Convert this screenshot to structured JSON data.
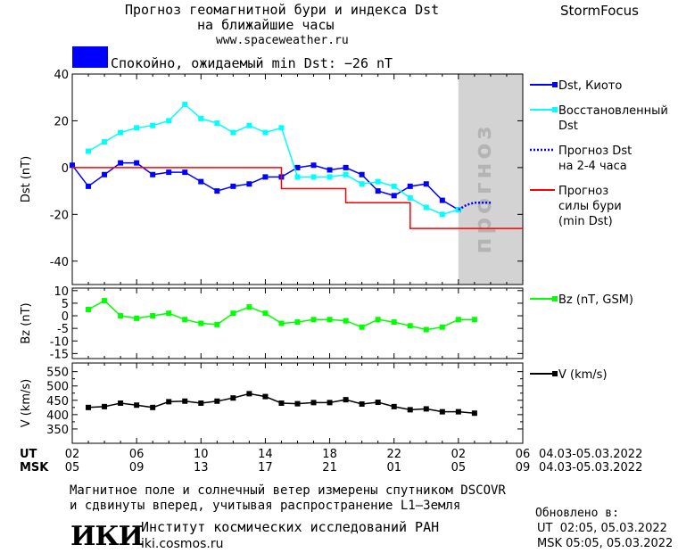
{
  "header": {
    "title_line1": "Прогноз геомагнитной бури и индекса Dst",
    "title_line2": "на ближайшие часы",
    "site": "www.spaceweather.ru",
    "brand": "StormFocus",
    "status_text": "Спокойно, ожидаемый min Dst: −26 nT",
    "status_color": "#0000ff"
  },
  "footer": {
    "note_line1": "Магнитное поле и солнечный ветер измерены спутником DSCOVR",
    "note_line2": "и сдвинуты вперед, учитывая распространение L1–Земля",
    "logo_text": "ИКИ",
    "institute": "Институт космических исследований РАН",
    "institute_url": "iki.cosmos.ru",
    "updated_label": "Обновлено в:",
    "updated_ut": "UT  02:05, 05.03.2022",
    "updated_msk": "MSK 05:05, 05.03.2022"
  },
  "chart_data": [
    {
      "type": "line",
      "ylabel": "Dst (nT)",
      "ylim": [
        -50,
        40
      ],
      "yticks": [
        40,
        20,
        0,
        -20,
        -40
      ],
      "forecast_zone_label": "прогноз",
      "legend": [
        {
          "label": "Dst, Киото",
          "color": "#0000ff",
          "style": "line-square"
        },
        {
          "label_lines": [
            "Восстановленный",
            "Dst"
          ],
          "color": "#00ffff",
          "style": "line-square"
        },
        {
          "label_lines": [
            "Прогноз Dst",
            "на 2-4 часа"
          ],
          "color": "#0000ff",
          "style": "dotted"
        },
        {
          "label_lines": [
            "Прогноз",
            "силы бури",
            "(min Dst)"
          ],
          "color": "#ff0000",
          "style": "line"
        }
      ],
      "series": [
        {
          "name": "Dst, Киото",
          "color": "#0000ff",
          "x": [
            2,
            3,
            4,
            5,
            6,
            7,
            8,
            9,
            10,
            11,
            12,
            13,
            14,
            15,
            16,
            17,
            18,
            19,
            20,
            21,
            22,
            23,
            24,
            25,
            26
          ],
          "y": [
            1,
            -8,
            -3,
            2,
            2,
            -3,
            -2,
            -2,
            -6,
            -10,
            -8,
            -7,
            -4,
            -4,
            0,
            1,
            -1,
            0,
            -3,
            -10,
            -12,
            -8,
            -7,
            -14,
            -18
          ]
        },
        {
          "name": "Восстановленный Dst",
          "color": "#00ffff",
          "x": [
            3,
            4,
            5,
            6,
            7,
            8,
            9,
            10,
            11,
            12,
            13,
            14,
            15,
            16,
            17,
            18,
            19,
            20,
            21,
            22,
            23,
            24,
            25,
            26
          ],
          "y": [
            7,
            11,
            15,
            17,
            18,
            20,
            27,
            21,
            19,
            15,
            18,
            15,
            17,
            -4,
            -4,
            -4,
            -3,
            -7,
            -6,
            -8,
            -13,
            -17,
            -20,
            -18
          ]
        },
        {
          "name": "Прогноз Dst на 2-4 часа",
          "color": "#0000ff",
          "style": "dotted",
          "x": [
            26,
            26.5,
            27,
            27.5,
            28.1
          ],
          "y": [
            -18,
            -16,
            -15,
            -15,
            -15
          ]
        },
        {
          "name": "Прогноз силы бури (min Dst)",
          "color": "#ff0000",
          "step": true,
          "x": [
            2,
            15,
            15,
            19,
            19,
            23,
            23,
            30
          ],
          "y": [
            0,
            0,
            -9,
            -9,
            -15,
            -15,
            -26,
            -26
          ]
        }
      ]
    },
    {
      "type": "line",
      "ylabel": "Bz (nT)",
      "ylim": [
        -17,
        11
      ],
      "yticks": [
        10,
        5,
        0,
        -5,
        -10,
        -15
      ],
      "legend": [
        {
          "label": "Bz (nT, GSM)",
          "color": "#00ff00",
          "style": "line-square"
        }
      ],
      "series": [
        {
          "name": "Bz (nT, GSM)",
          "color": "#00ff00",
          "x": [
            3,
            4,
            5,
            6,
            7,
            8,
            9,
            10,
            11,
            12,
            13,
            14,
            15,
            16,
            17,
            18,
            19,
            20,
            21,
            22,
            23,
            24,
            25,
            26,
            27
          ],
          "y": [
            2.5,
            6,
            0,
            -1,
            0,
            1,
            -1.5,
            -3,
            -3.5,
            1,
            3.5,
            1,
            -3,
            -2.5,
            -1.5,
            -1.5,
            -2,
            -4.5,
            -1.5,
            -2.5,
            -4,
            -5.5,
            -4.5,
            -1.5,
            -1.5
          ]
        }
      ]
    },
    {
      "type": "line",
      "ylabel": "V (km/s)",
      "ylim": [
        300,
        580
      ],
      "yticks": [
        550,
        500,
        450,
        400,
        350
      ],
      "minor_yticks": [
        525,
        475,
        425,
        375
      ],
      "legend": [
        {
          "label": "V (km/s)",
          "color": "#000000",
          "style": "line-square"
        }
      ],
      "series": [
        {
          "name": "V (km/s)",
          "color": "#000000",
          "x": [
            3,
            4,
            5,
            6,
            7,
            8,
            9,
            10,
            11,
            12,
            13,
            14,
            15,
            16,
            17,
            18,
            19,
            20,
            21,
            22,
            23,
            24,
            25,
            26,
            27
          ],
          "y": [
            425,
            428,
            440,
            433,
            425,
            445,
            447,
            440,
            447,
            458,
            473,
            463,
            440,
            438,
            442,
            442,
            452,
            437,
            443,
            428,
            417,
            420,
            410,
            410,
            405
          ]
        }
      ]
    }
  ],
  "x_axis": {
    "xlim": [
      2,
      30
    ],
    "ut_label": "UT",
    "msk_label": "MSK",
    "ut_ticks": [
      "02",
      "06",
      "10",
      "14",
      "18",
      "22",
      "02",
      "06"
    ],
    "msk_ticks": [
      "05",
      "09",
      "13",
      "17",
      "21",
      "01",
      "05",
      "09"
    ],
    "tick_positions": [
      2,
      6,
      10,
      14,
      18,
      22,
      26,
      30
    ],
    "forecast_start": 26,
    "date_range_ut": "04.03-05.03.2022",
    "date_range_msk": "04.03-05.03.2022"
  }
}
